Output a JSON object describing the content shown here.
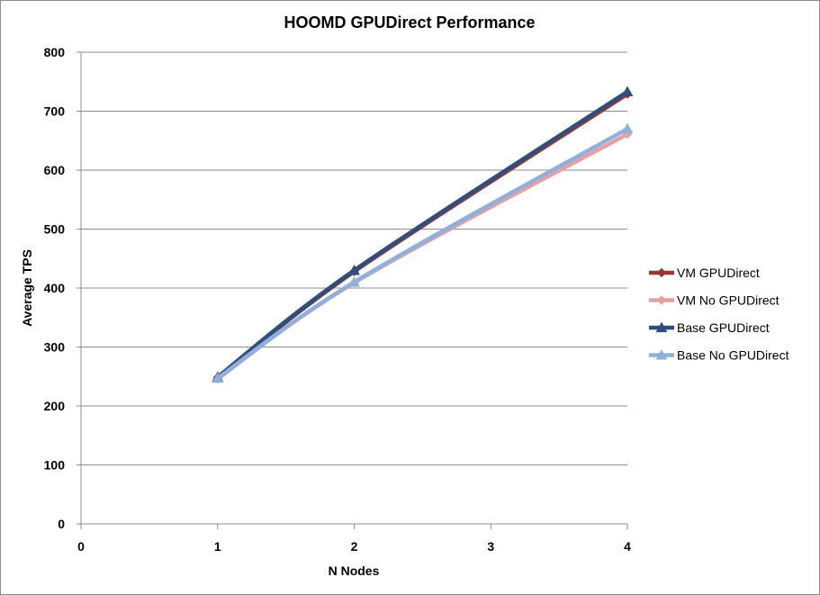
{
  "chart_data": {
    "type": "scatter",
    "title": "HOOMD GPUDirect Performance",
    "xlabel": "N Nodes",
    "ylabel": "Average TPS",
    "xlim": [
      0,
      4
    ],
    "ylim": [
      0,
      800
    ],
    "x_ticks": [
      0,
      1,
      2,
      3,
      4
    ],
    "y_ticks": [
      0,
      100,
      200,
      300,
      400,
      500,
      600,
      700,
      800
    ],
    "grid": "horizontal",
    "legend_position": "right",
    "series": [
      {
        "name": "VM GPUDirect",
        "x": [
          1,
          2,
          4
        ],
        "y": [
          248,
          428,
          729
        ],
        "color": "#953735",
        "marker": "diamond"
      },
      {
        "name": "VM No GPUDirect",
        "x": [
          1,
          2,
          4
        ],
        "y": [
          246,
          409,
          661
        ],
        "color": "#e6a0a0",
        "marker": "diamond"
      },
      {
        "name": "Base GPUDirect",
        "x": [
          1,
          2,
          4
        ],
        "y": [
          249,
          430,
          733
        ],
        "color": "#2e4f7e",
        "marker": "triangle"
      },
      {
        "name": "Base No GPUDirect",
        "x": [
          1,
          2,
          4
        ],
        "y": [
          247,
          410,
          670
        ],
        "color": "#8db0dd",
        "marker": "triangle"
      }
    ]
  }
}
